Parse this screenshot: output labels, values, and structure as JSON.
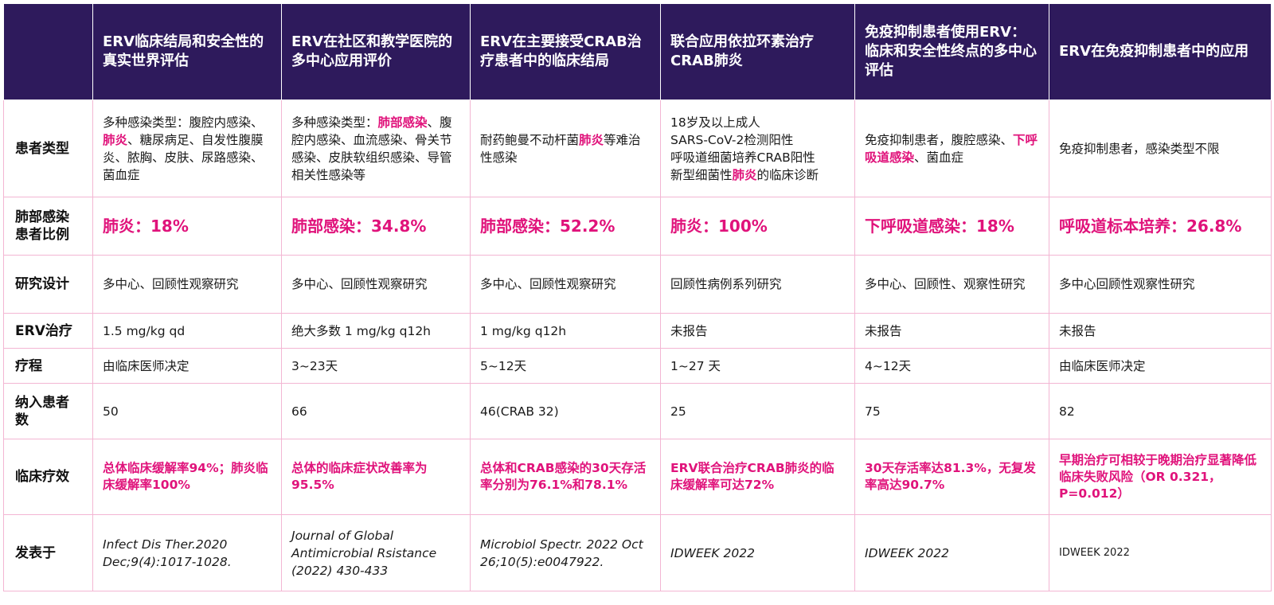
{
  "header": {
    "corner": "",
    "columns": [
      "ERV临床结局和安全性的真实世界评估",
      "ERV在社区和教学医院的多中心应用评价",
      "ERV在主要接受CRAB治疗患者中的临床结局",
      "联合应用依拉环素治疗CRAB肺炎",
      "免疫抑制患者使用ERV：临床和安全性终点的多中心评估",
      "ERV在免疫抑制患者中的应用"
    ]
  },
  "rows": {
    "patient_type": {
      "label": "患者类型",
      "c1": {
        "a": "多种感染类型：腹腔内感染、",
        "b": "肺炎",
        "c": "、糖尿病足、自发性腹膜炎、脓胸、皮肤、尿路感染、菌血症"
      },
      "c2": {
        "a": "多种感染类型：",
        "b": "肺部感染",
        "c": "、腹腔内感染、血流感染、骨关节感染、皮肤软组织感染、导管相关性感染等"
      },
      "c3": {
        "a": "耐药鲍曼不动杆菌",
        "b": "肺炎",
        "c": "等难治性感染"
      },
      "c4": {
        "l1": "18岁及以上成人",
        "l2": "SARS-CoV-2检测阳性",
        "l3": "呼吸道细菌培养CRAB阳性",
        "l4a": "新型细菌性",
        "l4b": "肺炎",
        "l4c": "的临床诊断"
      },
      "c5": {
        "a": "免疫抑制患者，腹腔感染、",
        "b": "下呼吸道感染",
        "c": "、菌血症"
      },
      "c6": "免疫抑制患者，感染类型不限"
    },
    "lung_ratio": {
      "label": "肺部感染患者比例",
      "values": [
        "肺炎：18%",
        "肺部感染：34.8%",
        "肺部感染：52.2%",
        "肺炎：100%",
        "下呼吸道感染：18%",
        "呼吸道标本培养：26.8%"
      ]
    },
    "design": {
      "label": "研究设计",
      "values": [
        "多中心、回顾性观察研究",
        "多中心、回顾性观察研究",
        "多中心、回顾性观察研究",
        "回顾性病例系列研究",
        "多中心、回顾性、观察性研究",
        "多中心回顾性观察性研究"
      ]
    },
    "erv": {
      "label": "ERV治疗",
      "values": [
        "1.5 mg/kg qd",
        "绝大多数 1 mg/kg q12h",
        "1 mg/kg q12h",
        "未报告",
        "未报告",
        "未报告"
      ]
    },
    "course": {
      "label": "疗程",
      "values": [
        "由临床医师决定",
        "3~23天",
        "5~12天",
        "1~27 天",
        "4~12天",
        "由临床医师决定"
      ]
    },
    "n": {
      "label": "纳入患者数",
      "values": [
        "50",
        "66",
        "46(CRAB 32)",
        "25",
        "75",
        "82"
      ]
    },
    "efficacy": {
      "label": "临床疗效",
      "values": [
        "总体临床缓解率94%；肺炎临床缓解率100%",
        "总体的临床症状改善率为95.5%",
        "总体和CRAB感染的30天存活率分别为76.1%和78.1%",
        "ERV联合治疗CRAB肺炎的临床缓解率可达72%",
        "30天存活率达81.3%，无复发率高达90.7%",
        "早期治疗可相较于晚期治疗显著降低临床失败风险（OR 0.321，P=0.012）"
      ]
    },
    "journal": {
      "label": "发表于",
      "values": [
        "Infect Dis Ther.2020 Dec;9(4):1017-1028.",
        "Journal of Global Antimicrobial Rsistance (2022) 430-433",
        "Microbiol Spectr. 2022 Oct 26;10(5):e0047922.",
        "IDWEEK 2022",
        "IDWEEK 2022",
        "IDWEEK 2022"
      ]
    }
  }
}
